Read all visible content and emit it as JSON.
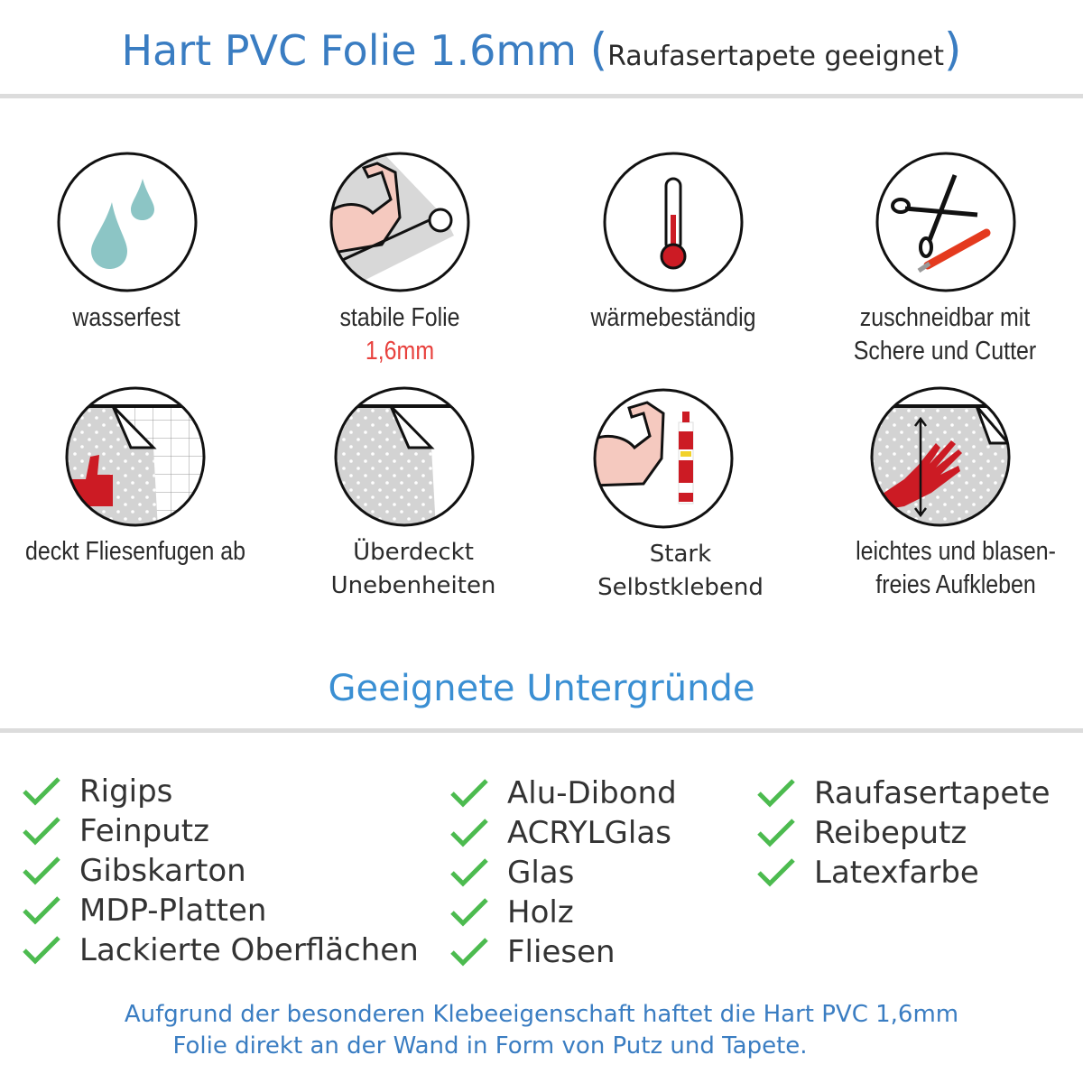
{
  "header": {
    "title_main": "Hart PVC Folie 1.6mm",
    "paren_open": "(",
    "title_sub": "Raufasertapete geeignet",
    "paren_close": ")"
  },
  "features": [
    {
      "icon": "water-drops-icon",
      "line1": "wasserfest"
    },
    {
      "icon": "strong-arm-film-roll-icon",
      "line1": "stabile Folie",
      "line2": "1,6mm"
    },
    {
      "icon": "thermometer-icon",
      "line1": "wärmebeständig"
    },
    {
      "icon": "scissors-cutter-icon",
      "line1": "zuschneidbar mit",
      "line2": "Schere und Cutter"
    },
    {
      "icon": "tile-cover-thumbs-up-icon",
      "line1": "deckt Fliesenfugen ab"
    },
    {
      "icon": "peeling-film-icon",
      "line1": "Überdeckt",
      "line2": "Unebenheiten"
    },
    {
      "icon": "strong-arm-glue-icon",
      "line1": "Stark",
      "line2": "Selbstklebend"
    },
    {
      "icon": "hand-smoothing-film-icon",
      "line1": "leichtes und blasen-",
      "line2": "freies Aufkleben"
    }
  ],
  "surfaces": {
    "heading": "Geeignete Untergründe",
    "columns": [
      [
        "Rigips",
        "Feinputz",
        "Gibskarton",
        "MDP-Platten",
        "Lackierte Oberflächen"
      ],
      [
        "Alu-Dibond",
        "ACRYLGlas",
        "Glas",
        "Holz",
        "Fliesen"
      ],
      [
        "Raufasertapete",
        "Reibeputz",
        "Latexfarbe"
      ]
    ]
  },
  "footer": {
    "line1": "Aufgrund der besonderen Klebeeigenschaft haftet die Hart PVC 1,6mm",
    "line2": "Folie direkt an der Wand in Form von Putz und Tapete."
  },
  "colors": {
    "title_blue": "#3a7dc2",
    "heading_blue": "#3a8fd3",
    "check_green": "#4cbb4f",
    "accent_red": "#e8413d",
    "icon_red": "#cc1b24",
    "drop_teal": "#8cc5c5"
  }
}
